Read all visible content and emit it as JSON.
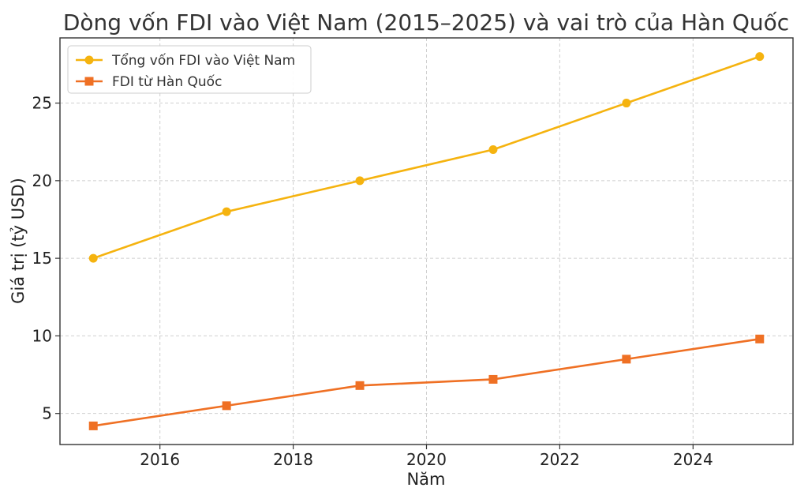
{
  "chart_data": {
    "type": "line",
    "title": "Dòng vốn FDI vào Việt Nam (2015–2025) và vai trò của Hàn Quốc",
    "xlabel": "Năm",
    "ylabel": "Giá trị (tỷ USD)",
    "xlim": [
      2014.5,
      2025.5
    ],
    "ylim": [
      3,
      29.2
    ],
    "xticks": [
      2016,
      2018,
      2020,
      2022,
      2024
    ],
    "yticks": [
      5,
      10,
      15,
      20,
      25
    ],
    "grid": true,
    "legend_position": "top-left",
    "series": [
      {
        "name": "Tổng vốn FDI vào Việt Nam",
        "color": "#f5b30f",
        "marker": "circle",
        "x": [
          2015,
          2017,
          2019,
          2021,
          2023,
          2025
        ],
        "y": [
          15,
          18,
          20,
          22,
          25,
          28
        ]
      },
      {
        "name": "FDI từ Hàn Quốc",
        "color": "#ef7024",
        "marker": "square",
        "x": [
          2015,
          2017,
          2019,
          2021,
          2023,
          2025
        ],
        "y": [
          4.2,
          5.5,
          6.8,
          7.2,
          8.5,
          9.8
        ]
      }
    ]
  }
}
